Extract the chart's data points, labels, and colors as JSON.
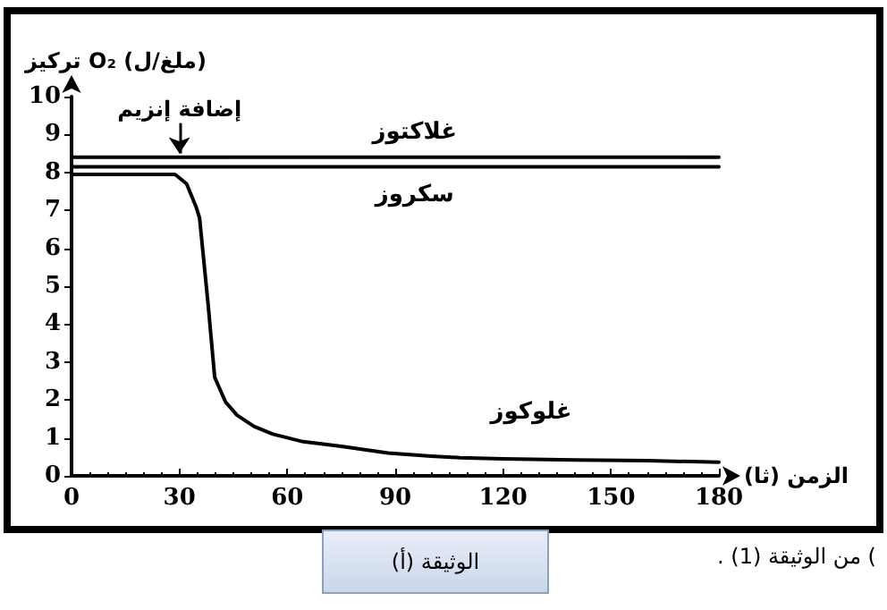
{
  "chart_data": {
    "type": "line",
    "ylabel": "تركيز O₂ (ملغ/ل)",
    "xlabel": "الزمن (ثا)",
    "xlim": [
      0,
      180
    ],
    "xticks": [
      0,
      30,
      60,
      90,
      120,
      150,
      180
    ],
    "ylim": [
      0,
      10
    ],
    "yticks": [
      0,
      1,
      2,
      3,
      4,
      5,
      6,
      7,
      8,
      9,
      10
    ],
    "grid": false,
    "legend": false,
    "marker": "none",
    "line_style": "solid",
    "series": [
      {
        "name": "غلاكتوز",
        "color": "#000000",
        "x": [
          0,
          180
        ],
        "values": [
          8.4,
          8.4
        ]
      },
      {
        "name": "سكروز",
        "color": "#000000",
        "x": [
          0,
          180
        ],
        "values": [
          8.15,
          8.15
        ]
      },
      {
        "name": "غلوكوز",
        "color": "#000000",
        "x": [
          0,
          10,
          20,
          28.8,
          32,
          34.6,
          35.6,
          38,
          39.8,
          42.8,
          46,
          50.8,
          56,
          64.4,
          75,
          88,
          100,
          108,
          120,
          140,
          160,
          180
        ],
        "values": [
          7.95,
          7.95,
          7.95,
          7.95,
          7.7,
          7.1,
          6.8,
          4.5,
          2.6,
          1.95,
          1.6,
          1.3,
          1.1,
          0.9,
          0.78,
          0.6,
          0.52,
          0.48,
          0.45,
          0.42,
          0.4,
          0.36
        ]
      }
    ],
    "annotations": [
      {
        "text": "إضافة إنزيم",
        "x": 30,
        "y": 8.5
      },
      ") من الوثيقة (1) .",
      "الوثيقة (أ)"
    ]
  }
}
